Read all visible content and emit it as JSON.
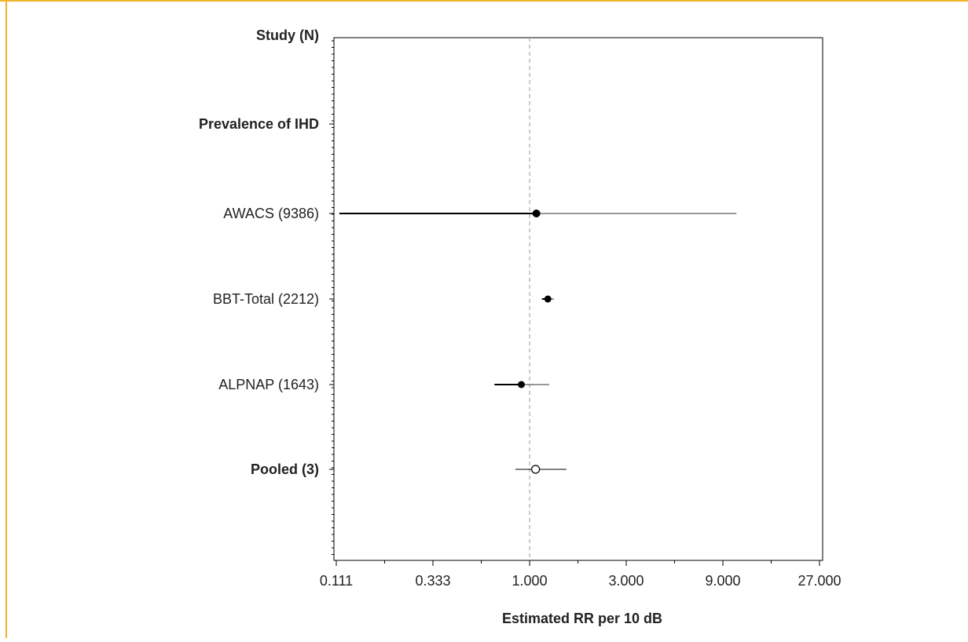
{
  "chart_data": {
    "type": "forest",
    "header_label": "Study (N)",
    "xlabel": "Estimated RR per 10 dB",
    "x_scale": "log",
    "xlim": [
      0.111,
      27.0
    ],
    "x_ticks": [
      {
        "value": 0.111,
        "label": "0.111"
      },
      {
        "value": 0.333,
        "label": "0.333"
      },
      {
        "value": 1.0,
        "label": "1.000"
      },
      {
        "value": 3.0,
        "label": "3.000"
      },
      {
        "value": 9.0,
        "label": "9.000"
      },
      {
        "value": 27.0,
        "label": "27.000"
      }
    ],
    "reference_value": 1.0,
    "rows": [
      {
        "label": "Prevalence of IHD",
        "bold": true,
        "kind": "header"
      },
      {
        "label": "AWACS (9386)",
        "bold": false,
        "kind": "study",
        "estimate": 1.08,
        "lower": 0.115,
        "upper": 10.5
      },
      {
        "label": "BBT-Total (2212)",
        "bold": false,
        "kind": "study",
        "estimate": 1.23,
        "lower": 1.15,
        "upper": 1.32
      },
      {
        "label": "ALPNAP (1643)",
        "bold": false,
        "kind": "study",
        "estimate": 0.91,
        "lower": 0.67,
        "upper": 1.25
      },
      {
        "label": "Pooled (3)",
        "bold": true,
        "kind": "pooled",
        "estimate": 1.07,
        "lower": 0.85,
        "upper": 1.52
      }
    ]
  },
  "colors": {
    "border": "#f0b429",
    "axis": "#000000",
    "reference_line": "#aaaaaa",
    "text": "#222222"
  }
}
